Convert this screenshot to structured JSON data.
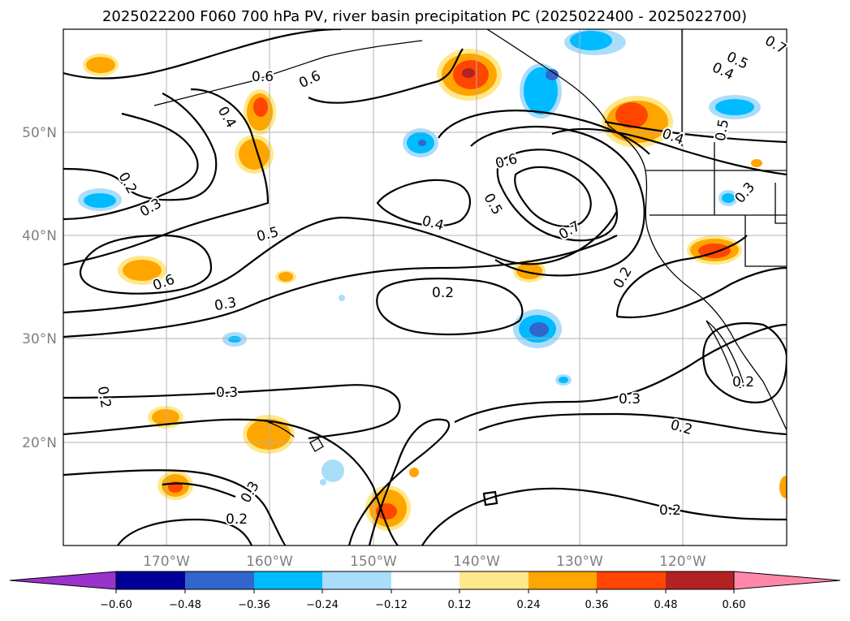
{
  "title": "2025022200 F060 700 hPa PV, river basin precipitation PC (2025022400 - 2025022700)",
  "lon_labels": [
    "170°W",
    "160°W",
    "150°W",
    "140°W",
    "130°W",
    "120°W"
  ],
  "lat_labels": [
    "50°N",
    "40°N",
    "30°N",
    "20°N"
  ],
  "contour_labels": [
    "0.6",
    "0.6",
    "0.4",
    "0.7",
    "0.5",
    "0.4",
    "0.5",
    "0.3",
    "0.4",
    "0.2",
    "0.3",
    "0.5",
    "0.4",
    "0.6",
    "0.5",
    "0.7",
    "0.6",
    "0.2",
    "0.3",
    "0.2",
    "0.2",
    "0.3",
    "0.2",
    "0.2",
    "0.3",
    "0.3",
    "0.2",
    "0.2"
  ],
  "colorbar": {
    "colors": [
      "#9933cc",
      "#000099",
      "#3366cc",
      "#00bbff",
      "#aaddfa",
      "#ffffff",
      "#ffe88a",
      "#ffa500",
      "#ff4500",
      "#b22222",
      "#ff88aa"
    ],
    "tick_labels": [
      "−0.60",
      "−0.48",
      "−0.36",
      "−0.24",
      "−0.12",
      "0.12",
      "0.24",
      "0.36",
      "0.48",
      "0.60"
    ]
  },
  "colors": {
    "coast": "#000000",
    "grid": "#b0b0b0",
    "label_gray": "#808080"
  }
}
